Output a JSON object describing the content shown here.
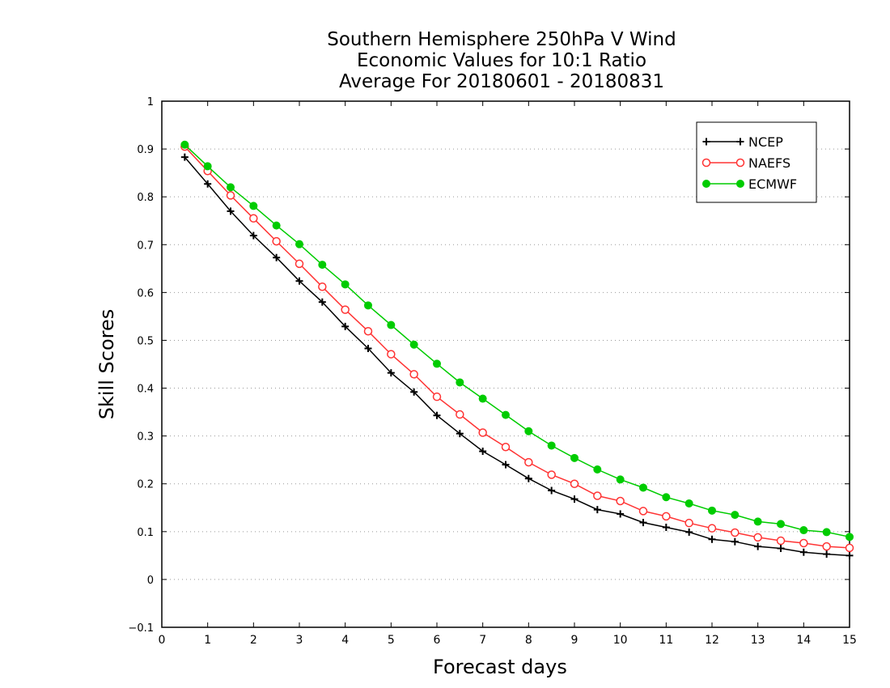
{
  "chart_data": {
    "type": "line",
    "title": [
      "Southern Hemisphere 250hPa V Wind",
      "Economic Values for 10:1 Ratio",
      "Average For 20180601 - 20180831"
    ],
    "xlabel": "Forecast days",
    "ylabel": "Skill Scores",
    "xlim": [
      0,
      15
    ],
    "ylim": [
      -0.1,
      1
    ],
    "xticks": [
      "0",
      "1",
      "2",
      "3",
      "4",
      "5",
      "6",
      "7",
      "8",
      "9",
      "10",
      "11",
      "12",
      "13",
      "14",
      "15"
    ],
    "yticks": [
      "−0.1",
      "0",
      "0.1",
      "0.2",
      "0.3",
      "0.4",
      "0.5",
      "0.6",
      "0.7",
      "0.8",
      "0.9",
      "1"
    ],
    "grid": "horizontal dotted",
    "legend_position": "top-right",
    "x": [
      0.5,
      1,
      1.5,
      2,
      2.5,
      3,
      3.5,
      4,
      4.5,
      5,
      5.5,
      6,
      6.5,
      7,
      7.5,
      8,
      8.5,
      9,
      9.5,
      10,
      10.5,
      11,
      11.5,
      12,
      12.5,
      13,
      13.5,
      14,
      14.5,
      15
    ],
    "series": [
      {
        "name": "NCEP",
        "color": "#000000",
        "marker": "plus",
        "values": [
          0.883,
          0.827,
          0.77,
          0.719,
          0.673,
          0.624,
          0.58,
          0.529,
          0.483,
          0.432,
          0.392,
          0.343,
          0.305,
          0.268,
          0.24,
          0.211,
          0.186,
          0.168,
          0.146,
          0.137,
          0.119,
          0.109,
          0.099,
          0.084,
          0.079,
          0.069,
          0.065,
          0.057,
          0.053,
          0.05
        ]
      },
      {
        "name": "NAEFS",
        "color": "#ff3333",
        "marker": "open-circle",
        "values": [
          0.905,
          0.854,
          0.803,
          0.755,
          0.707,
          0.66,
          0.612,
          0.564,
          0.519,
          0.471,
          0.429,
          0.382,
          0.345,
          0.307,
          0.277,
          0.245,
          0.219,
          0.2,
          0.175,
          0.164,
          0.143,
          0.132,
          0.118,
          0.107,
          0.098,
          0.088,
          0.081,
          0.076,
          0.069,
          0.066
        ]
      },
      {
        "name": "ECMWF",
        "color": "#00cc00",
        "marker": "filled-circle",
        "values": [
          0.909,
          0.864,
          0.82,
          0.781,
          0.74,
          0.701,
          0.658,
          0.617,
          0.573,
          0.532,
          0.491,
          0.451,
          0.412,
          0.378,
          0.344,
          0.31,
          0.28,
          0.254,
          0.23,
          0.209,
          0.192,
          0.172,
          0.159,
          0.144,
          0.135,
          0.121,
          0.116,
          0.103,
          0.099,
          0.089
        ]
      }
    ]
  }
}
